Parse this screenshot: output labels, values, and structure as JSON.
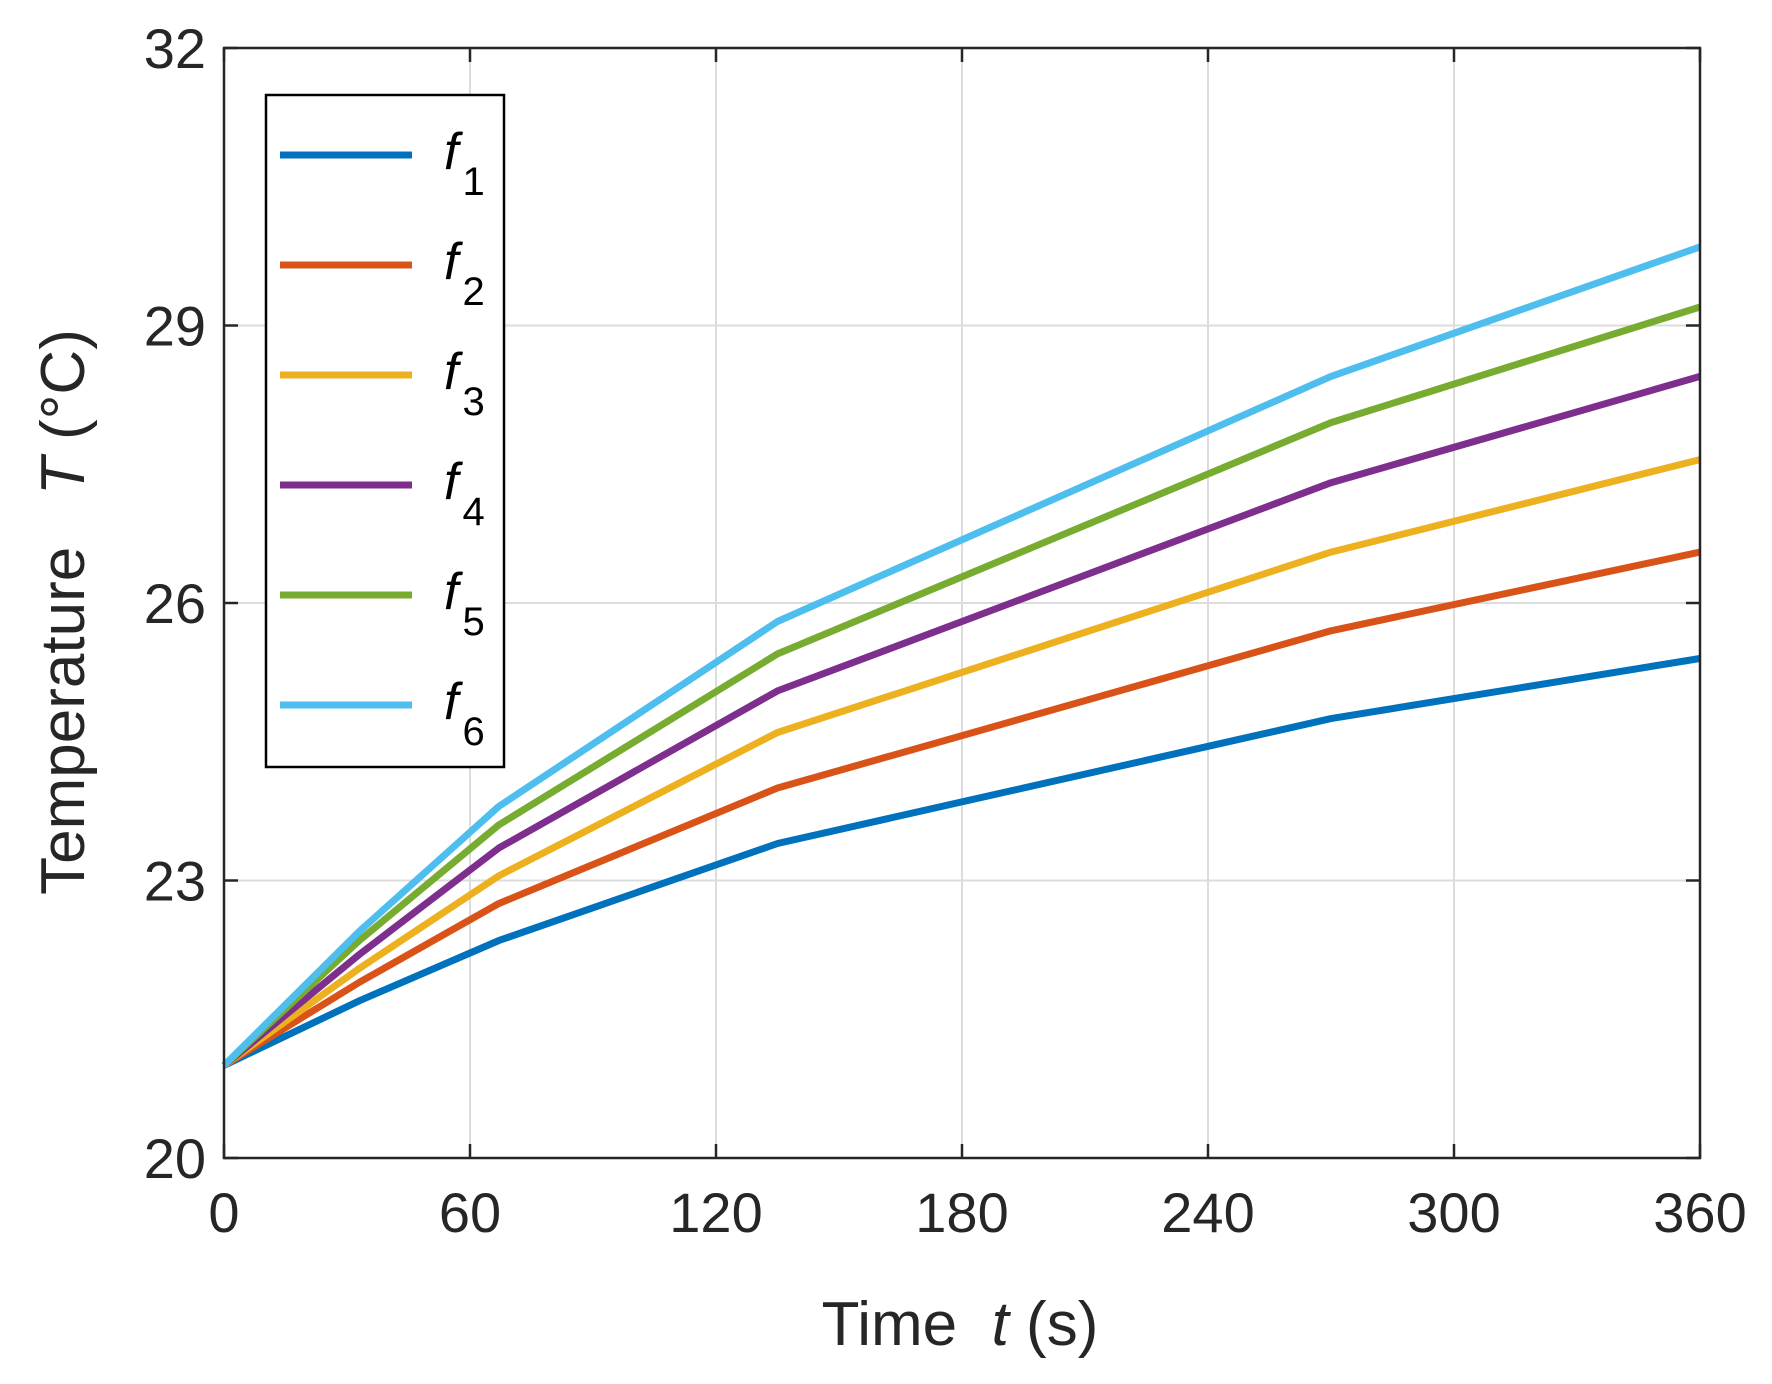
{
  "chart_data": {
    "type": "line",
    "title": "",
    "xlabel": {
      "text": "Time",
      "symbol": "t",
      "unit": "(s)"
    },
    "ylabel": {
      "text": "Temperature",
      "symbol": "T",
      "unit": "(°C)"
    },
    "xlim": [
      0,
      360
    ],
    "ylim": [
      20,
      32
    ],
    "xticks": [
      0,
      60,
      120,
      180,
      240,
      300,
      360
    ],
    "yticks": [
      20,
      23,
      26,
      29,
      32
    ],
    "grid": true,
    "legend_position": "top-left",
    "x": [
      0,
      33,
      67,
      135,
      270,
      360
    ],
    "series": [
      {
        "name": "f1",
        "symbol": "f",
        "sub": "1",
        "color": "#0072BD",
        "values": [
          21.0,
          21.7,
          22.35,
          23.4,
          24.75,
          25.4
        ]
      },
      {
        "name": "f2",
        "symbol": "f",
        "sub": "2",
        "color": "#D95319",
        "values": [
          21.0,
          21.9,
          22.75,
          24.0,
          25.7,
          26.55
        ]
      },
      {
        "name": "f3",
        "symbol": "f",
        "sub": "3",
        "color": "#EDB120",
        "values": [
          21.0,
          22.05,
          23.05,
          24.6,
          26.55,
          27.55
        ]
      },
      {
        "name": "f4",
        "symbol": "f",
        "sub": "4",
        "color": "#7E2F8E",
        "values": [
          21.0,
          22.2,
          23.35,
          25.05,
          27.3,
          28.45
        ]
      },
      {
        "name": "f5",
        "symbol": "f",
        "sub": "5",
        "color": "#77AC30",
        "values": [
          21.0,
          22.35,
          23.6,
          25.45,
          27.95,
          29.2
        ]
      },
      {
        "name": "f6",
        "symbol": "f",
        "sub": "6",
        "color": "#4DBEEE",
        "values": [
          21.0,
          22.45,
          23.8,
          25.8,
          28.45,
          29.85
        ]
      }
    ]
  }
}
